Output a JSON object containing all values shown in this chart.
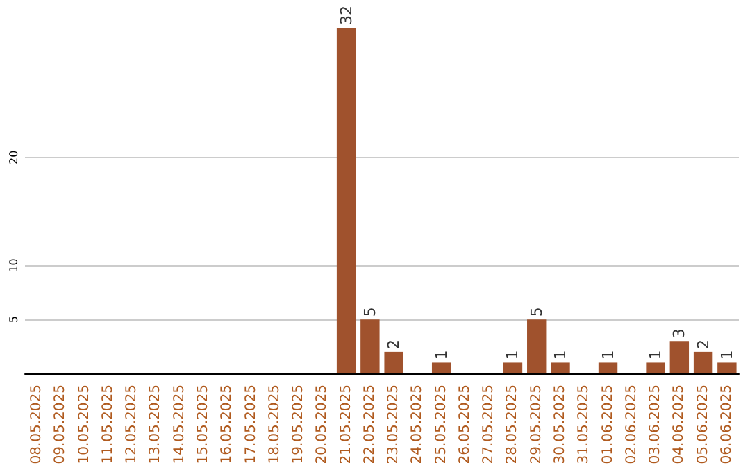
{
  "chart_data": {
    "type": "bar",
    "categories": [
      "08.05.2025",
      "09.05.2025",
      "10.05.2025",
      "11.05.2025",
      "12.05.2025",
      "13.05.2025",
      "14.05.2025",
      "15.05.2025",
      "16.05.2025",
      "17.05.2025",
      "18.05.2025",
      "19.05.2025",
      "20.05.2025",
      "21.05.2025",
      "22.05.2025",
      "23.05.2025",
      "24.05.2025",
      "25.05.2025",
      "26.05.2025",
      "27.05.2025",
      "28.05.2025",
      "29.05.2025",
      "30.05.2025",
      "31.05.2025",
      "01.06.2025",
      "02.06.2025",
      "03.06.2025",
      "04.06.2025",
      "05.06.2025",
      "06.06.2025"
    ],
    "values": [
      0,
      0,
      0,
      0,
      0,
      0,
      0,
      0,
      0,
      0,
      0,
      0,
      0,
      32,
      5,
      2,
      0,
      1,
      0,
      0,
      1,
      5,
      1,
      0,
      1,
      0,
      1,
      3,
      2,
      1
    ],
    "value_labels": [
      null,
      null,
      null,
      null,
      null,
      null,
      null,
      null,
      null,
      null,
      null,
      null,
      null,
      "32",
      "5",
      "2",
      null,
      "1",
      null,
      null,
      "1",
      "5",
      "1",
      null,
      "1",
      null,
      "1",
      "3",
      "2",
      "1"
    ],
    "color": "#a0522d",
    "ylim": [
      0,
      32
    ],
    "yticks": [
      5,
      10,
      20
    ],
    "grid": "y"
  }
}
